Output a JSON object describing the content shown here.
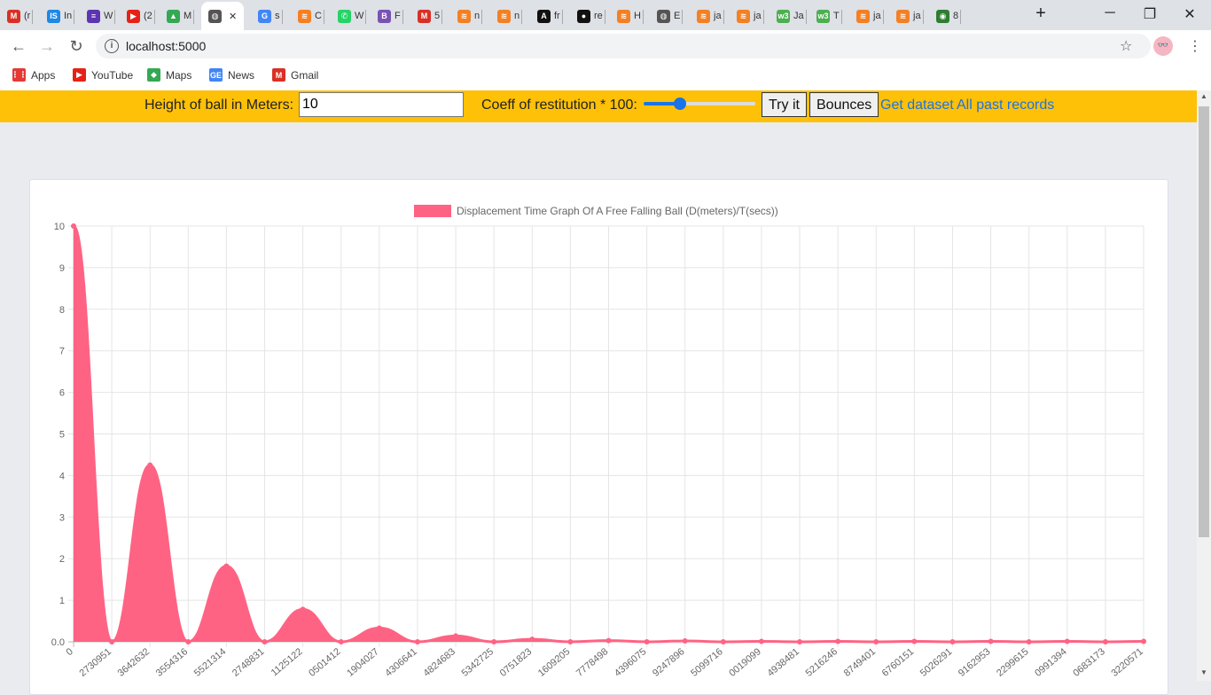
{
  "browser": {
    "tabs": [
      {
        "label": "(r",
        "icon": "gmail-icon",
        "color": "#d93025",
        "glyph": "M"
      },
      {
        "label": "In",
        "icon": "is-icon",
        "color": "#1e88e5",
        "glyph": "IS"
      },
      {
        "label": "W",
        "icon": "list-icon",
        "color": "#5e35b1",
        "glyph": "≡"
      },
      {
        "label": "(2",
        "icon": "youtube-icon",
        "color": "#e62117",
        "glyph": "▶"
      },
      {
        "label": "M",
        "icon": "drive-icon",
        "color": "#34a853",
        "glyph": "▲"
      },
      {
        "label": "",
        "icon": "globe-icon",
        "color": "#555",
        "glyph": "◍",
        "active": true
      },
      {
        "label": "s",
        "icon": "google-icon",
        "color": "#4285f4",
        "glyph": "G"
      },
      {
        "label": "C",
        "icon": "stackoverflow-icon",
        "color": "#f48024",
        "glyph": "≋"
      },
      {
        "label": "W",
        "icon": "whatsapp-icon",
        "color": "#25d366",
        "glyph": "✆"
      },
      {
        "label": "F",
        "icon": "bootstrap-icon",
        "color": "#7952b3",
        "glyph": "B"
      },
      {
        "label": "5",
        "icon": "gmail-icon",
        "color": "#d93025",
        "glyph": "M"
      },
      {
        "label": "n",
        "icon": "stackoverflow-icon",
        "color": "#f48024",
        "glyph": "≋"
      },
      {
        "label": "n",
        "icon": "stackoverflow-icon",
        "color": "#f48024",
        "glyph": "≋"
      },
      {
        "label": "fr",
        "icon": "angular-icon",
        "color": "#111",
        "glyph": "A"
      },
      {
        "label": "re",
        "icon": "github-icon",
        "color": "#111",
        "glyph": "●"
      },
      {
        "label": "H",
        "icon": "stackoverflow-icon",
        "color": "#f48024",
        "glyph": "≋"
      },
      {
        "label": "E",
        "icon": "globe-icon",
        "color": "#555",
        "glyph": "◍"
      },
      {
        "label": "ja",
        "icon": "stackoverflow-icon",
        "color": "#f48024",
        "glyph": "≋"
      },
      {
        "label": "ja",
        "icon": "stackoverflow-icon",
        "color": "#f48024",
        "glyph": "≋"
      },
      {
        "label": "Ja",
        "icon": "w3schools-icon",
        "color": "#4caf50",
        "glyph": "w3"
      },
      {
        "label": "T",
        "icon": "w3schools-icon",
        "color": "#4caf50",
        "glyph": "w3"
      },
      {
        "label": "ja",
        "icon": "stackoverflow-icon",
        "color": "#f48024",
        "glyph": "≋"
      },
      {
        "label": "ja",
        "icon": "stackoverflow-icon",
        "color": "#f48024",
        "glyph": "≋"
      },
      {
        "label": "8",
        "icon": "earth-icon",
        "color": "#2e7d32",
        "glyph": "◉"
      }
    ],
    "url": "localhost:5000",
    "bookmarks": [
      {
        "label": "Apps",
        "icon": "apps-icon",
        "color": "#e53935",
        "glyph": "⋮⋮"
      },
      {
        "label": "YouTube",
        "icon": "youtube-icon",
        "color": "#e62117",
        "glyph": "▶"
      },
      {
        "label": "Maps",
        "icon": "maps-icon",
        "color": "#34a853",
        "glyph": "◆"
      },
      {
        "label": "News",
        "icon": "news-icon",
        "color": "#4285f4",
        "glyph": "GE"
      },
      {
        "label": "Gmail",
        "icon": "gmail-icon",
        "color": "#d93025",
        "glyph": "M"
      }
    ]
  },
  "controls": {
    "height_label": "Height of ball in Meters:",
    "height_value": "10",
    "coeff_label": "Coeff of restitution * 100:",
    "coeff_value": 30,
    "coeff_max": 100,
    "try_label": "Try it",
    "bounces_label": "Bounces",
    "dataset_link": "Get dataset",
    "records_link": "All past records",
    "bar_color": "#fec107",
    "link_color": "#1a73e8"
  },
  "chart_data": {
    "type": "area",
    "legend": "Displacement Time Graph Of A Free Falling Ball  (D(meters)/T(secs))",
    "legend_position": "top",
    "color": "#ff6384",
    "ylim": [
      0,
      10
    ],
    "yticks": [
      "0.0",
      "1",
      "2",
      "3",
      "4",
      "5",
      "6",
      "7",
      "8",
      "9",
      "10"
    ],
    "categories": [
      "0",
      "2730951",
      "3642632",
      "3554316",
      "5521314",
      "2748831",
      "1125122",
      "0501412",
      "1904027",
      "4306641",
      "4824683",
      "5342725",
      "0751823",
      "1609205",
      "7778498",
      "4396075",
      "9247896",
      "5099716",
      "0019099",
      "4938481",
      "5216246",
      "8749401",
      "6760151",
      "5026291",
      "9162953",
      "2299615",
      "0991394",
      "0683173",
      "3220571"
    ],
    "values": [
      10,
      0,
      4.25,
      0,
      1.82,
      0,
      0.78,
      0,
      0.33,
      0,
      0.14,
      0,
      0.06,
      0,
      0.03,
      0,
      0.02,
      0,
      0.01,
      0,
      0.01,
      0,
      0.01,
      0,
      0.01,
      0,
      0.01,
      0,
      0.01
    ],
    "grid": true
  }
}
